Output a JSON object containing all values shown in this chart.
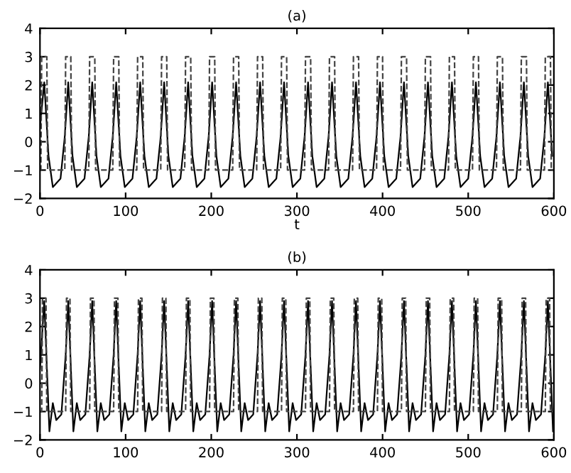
{
  "chart_data": [
    {
      "type": "line",
      "title": "(a)",
      "xlabel": "t",
      "xlim": [
        0,
        600
      ],
      "xticks": [
        0,
        100,
        200,
        300,
        400,
        500,
        600
      ],
      "ylim": [
        -2,
        4
      ],
      "yticks": [
        -2,
        -1,
        0,
        1,
        2,
        3,
        4
      ],
      "grid": false,
      "marker": "none",
      "series": [
        {
          "color": "#000000",
          "line_style": "solid",
          "x": [
            0,
            5,
            10,
            15,
            24,
            29,
            33,
            38,
            43,
            52,
            57,
            61,
            66,
            71,
            80,
            85,
            89,
            94,
            99,
            108,
            113,
            117,
            122,
            127,
            136,
            141,
            145,
            150,
            155,
            164,
            169,
            173,
            178,
            183,
            192,
            197,
            201,
            206,
            211,
            220,
            225,
            229,
            234,
            239,
            248,
            253,
            257,
            262,
            267,
            276,
            281,
            285,
            290,
            295,
            304,
            309,
            313,
            318,
            323,
            332,
            337,
            341,
            346,
            351,
            360,
            365,
            369,
            374,
            379,
            388,
            393,
            397,
            402,
            407,
            416,
            421,
            425,
            430,
            435,
            444,
            449,
            453,
            458,
            463,
            472,
            477,
            481,
            486,
            491,
            500,
            505,
            509,
            514,
            519,
            528,
            533,
            537,
            542,
            547,
            556,
            561,
            565,
            570,
            575,
            584,
            589,
            593,
            598
          ],
          "values": [
            0.5,
            2.1,
            -0.5,
            -1.6,
            -1.3,
            0.2,
            2.1,
            -0.5,
            -1.6,
            -1.3,
            0.2,
            2.1,
            -0.5,
            -1.6,
            -1.3,
            0.2,
            2.1,
            -0.5,
            -1.6,
            -1.3,
            0.2,
            2.1,
            -0.5,
            -1.6,
            -1.3,
            0.2,
            2.1,
            -0.5,
            -1.6,
            -1.3,
            0.2,
            2.1,
            -0.5,
            -1.6,
            -1.3,
            0.2,
            2.1,
            -0.5,
            -1.6,
            -1.3,
            0.2,
            2.1,
            -0.5,
            -1.6,
            -1.3,
            0.2,
            2.1,
            -0.5,
            -1.6,
            -1.3,
            0.2,
            2.1,
            -0.5,
            -1.6,
            -1.3,
            0.2,
            2.1,
            -0.5,
            -1.6,
            -1.3,
            0.2,
            2.1,
            -0.5,
            -1.6,
            -1.3,
            0.2,
            2.1,
            -0.5,
            -1.6,
            -1.3,
            0.2,
            2.1,
            -0.5,
            -1.6,
            -1.3,
            0.2,
            2.1,
            -0.5,
            -1.6,
            -1.3,
            0.2,
            2.1,
            -0.5,
            -1.6,
            -1.3,
            0.2,
            2.1,
            -0.5,
            -1.6,
            -1.3,
            0.2,
            2.1,
            -0.5,
            -1.6,
            -1.3,
            0.2,
            2.1,
            -0.5,
            -1.6,
            -1.3,
            0.2,
            2.1,
            -0.5,
            -1.6,
            -1.3,
            0.2,
            2.1,
            -0.5
          ]
        },
        {
          "color": "#444444",
          "line_style": "dashed",
          "x": [
            0,
            1,
            2,
            8,
            9,
            29,
            30,
            36,
            37,
            57,
            58,
            64,
            65,
            85,
            86,
            92,
            93,
            113,
            114,
            120,
            121,
            141,
            142,
            148,
            149,
            169,
            170,
            176,
            177,
            197,
            198,
            204,
            205,
            225,
            226,
            232,
            233,
            253,
            254,
            260,
            261,
            281,
            282,
            288,
            289,
            309,
            310,
            316,
            317,
            337,
            338,
            344,
            345,
            365,
            366,
            372,
            373,
            393,
            394,
            400,
            401,
            421,
            422,
            428,
            429,
            449,
            450,
            456,
            457,
            477,
            478,
            484,
            485,
            505,
            506,
            512,
            513,
            533,
            534,
            540,
            541,
            561,
            562,
            568,
            569,
            589,
            590,
            596,
            597,
            600
          ],
          "values": [
            -1,
            -1,
            3,
            3,
            -1,
            -1,
            3,
            3,
            -1,
            -1,
            3,
            3,
            -1,
            -1,
            3,
            3,
            -1,
            -1,
            3,
            3,
            -1,
            -1,
            3,
            3,
            -1,
            -1,
            3,
            3,
            -1,
            -1,
            3,
            3,
            -1,
            -1,
            3,
            3,
            -1,
            -1,
            3,
            3,
            -1,
            -1,
            3,
            3,
            -1,
            -1,
            3,
            3,
            -1,
            -1,
            3,
            3,
            -1,
            -1,
            3,
            3,
            -1,
            -1,
            3,
            3,
            -1,
            -1,
            3,
            3,
            -1,
            -1,
            3,
            3,
            -1,
            -1,
            3,
            3,
            -1,
            -1,
            3,
            3,
            -1,
            -1,
            3,
            3,
            -1,
            -1,
            3,
            3,
            -1,
            -1,
            3,
            3,
            -1,
            -1
          ]
        }
      ]
    },
    {
      "type": "line",
      "title": "(b)",
      "xlim": [
        0,
        600
      ],
      "xticks": [
        0,
        100,
        200,
        300,
        400,
        500,
        600
      ],
      "ylim": [
        -2,
        4
      ],
      "yticks": [
        -2,
        -1,
        0,
        1,
        2,
        3,
        4
      ],
      "grid": false,
      "marker": "none",
      "series": [
        {
          "color": "#000000",
          "line_style": "solid",
          "x": [
            0,
            5,
            11,
            15,
            19,
            25,
            30,
            33,
            39,
            43,
            47,
            53,
            58,
            61,
            67,
            71,
            75,
            81,
            86,
            89,
            95,
            99,
            103,
            109,
            114,
            117,
            123,
            127,
            131,
            137,
            142,
            145,
            151,
            155,
            159,
            165,
            170,
            173,
            179,
            183,
            187,
            193,
            198,
            201,
            207,
            211,
            215,
            221,
            226,
            229,
            235,
            239,
            243,
            249,
            254,
            257,
            263,
            267,
            271,
            277,
            282,
            285,
            291,
            295,
            299,
            305,
            310,
            313,
            319,
            323,
            327,
            333,
            338,
            341,
            347,
            351,
            355,
            361,
            366,
            369,
            375,
            379,
            383,
            389,
            394,
            397,
            403,
            407,
            411,
            417,
            422,
            425,
            431,
            435,
            439,
            445,
            450,
            453,
            459,
            463,
            467,
            473,
            478,
            481,
            487,
            491,
            495,
            501,
            506,
            509,
            515,
            519,
            523,
            529,
            534,
            537,
            543,
            547,
            551,
            557,
            562,
            565,
            571,
            575,
            579,
            585,
            590,
            593,
            599
          ],
          "values": [
            0.5,
            2.9,
            -1.7,
            -0.7,
            -1.3,
            -1.1,
            1.0,
            2.9,
            -1.7,
            -0.7,
            -1.3,
            -1.1,
            1.0,
            2.9,
            -1.7,
            -0.7,
            -1.3,
            -1.1,
            1.0,
            2.9,
            -1.7,
            -0.7,
            -1.3,
            -1.1,
            1.0,
            2.9,
            -1.7,
            -0.7,
            -1.3,
            -1.1,
            1.0,
            2.9,
            -1.7,
            -0.7,
            -1.3,
            -1.1,
            1.0,
            2.9,
            -1.7,
            -0.7,
            -1.3,
            -1.1,
            1.0,
            2.9,
            -1.7,
            -0.7,
            -1.3,
            -1.1,
            1.0,
            2.9,
            -1.7,
            -0.7,
            -1.3,
            -1.1,
            1.0,
            2.9,
            -1.7,
            -0.7,
            -1.3,
            -1.1,
            1.0,
            2.9,
            -1.7,
            -0.7,
            -1.3,
            -1.1,
            1.0,
            2.9,
            -1.7,
            -0.7,
            -1.3,
            -1.1,
            1.0,
            2.9,
            -1.7,
            -0.7,
            -1.3,
            -1.1,
            1.0,
            2.9,
            -1.7,
            -0.7,
            -1.3,
            -1.1,
            1.0,
            2.9,
            -1.7,
            -0.7,
            -1.3,
            -1.1,
            1.0,
            2.9,
            -1.7,
            -0.7,
            -1.3,
            -1.1,
            1.0,
            2.9,
            -1.7,
            -0.7,
            -1.3,
            -1.1,
            1.0,
            2.9,
            -1.7,
            -0.7,
            -1.3,
            -1.1,
            1.0,
            2.9,
            -1.7,
            -0.7,
            -1.3,
            -1.1,
            1.0,
            2.9,
            -1.7,
            -0.7,
            -1.3,
            -1.1,
            1.0,
            2.9,
            -1.7,
            -0.7,
            -1.3,
            -1.1,
            1.0,
            2.9,
            -1.7
          ]
        },
        {
          "color": "#444444",
          "line_style": "dashed",
          "x": [
            0,
            2,
            3,
            7,
            8,
            30,
            31,
            35,
            36,
            58,
            59,
            63,
            64,
            86,
            87,
            91,
            92,
            114,
            115,
            119,
            120,
            142,
            143,
            147,
            148,
            170,
            171,
            175,
            176,
            198,
            199,
            203,
            204,
            226,
            227,
            231,
            232,
            254,
            255,
            259,
            260,
            282,
            283,
            287,
            288,
            310,
            311,
            315,
            316,
            338,
            339,
            343,
            344,
            366,
            367,
            371,
            372,
            394,
            395,
            399,
            400,
            422,
            423,
            427,
            428,
            450,
            451,
            455,
            456,
            478,
            479,
            483,
            484,
            506,
            507,
            511,
            512,
            534,
            535,
            539,
            540,
            562,
            563,
            567,
            568,
            590,
            591,
            595,
            596,
            600
          ],
          "values": [
            -1,
            -1,
            3,
            3,
            -1,
            -1,
            3,
            3,
            -1,
            -1,
            3,
            3,
            -1,
            -1,
            3,
            3,
            -1,
            -1,
            3,
            3,
            -1,
            -1,
            3,
            3,
            -1,
            -1,
            3,
            3,
            -1,
            -1,
            3,
            3,
            -1,
            -1,
            3,
            3,
            -1,
            -1,
            3,
            3,
            -1,
            -1,
            3,
            3,
            -1,
            -1,
            3,
            3,
            -1,
            -1,
            3,
            3,
            -1,
            -1,
            3,
            3,
            -1,
            -1,
            3,
            3,
            -1,
            -1,
            3,
            3,
            -1,
            -1,
            3,
            3,
            -1,
            -1,
            3,
            3,
            -1,
            -1,
            3,
            3,
            -1,
            -1,
            3,
            3,
            -1,
            -1,
            3,
            3,
            -1,
            -1,
            3,
            3,
            -1,
            -1
          ]
        }
      ]
    }
  ]
}
